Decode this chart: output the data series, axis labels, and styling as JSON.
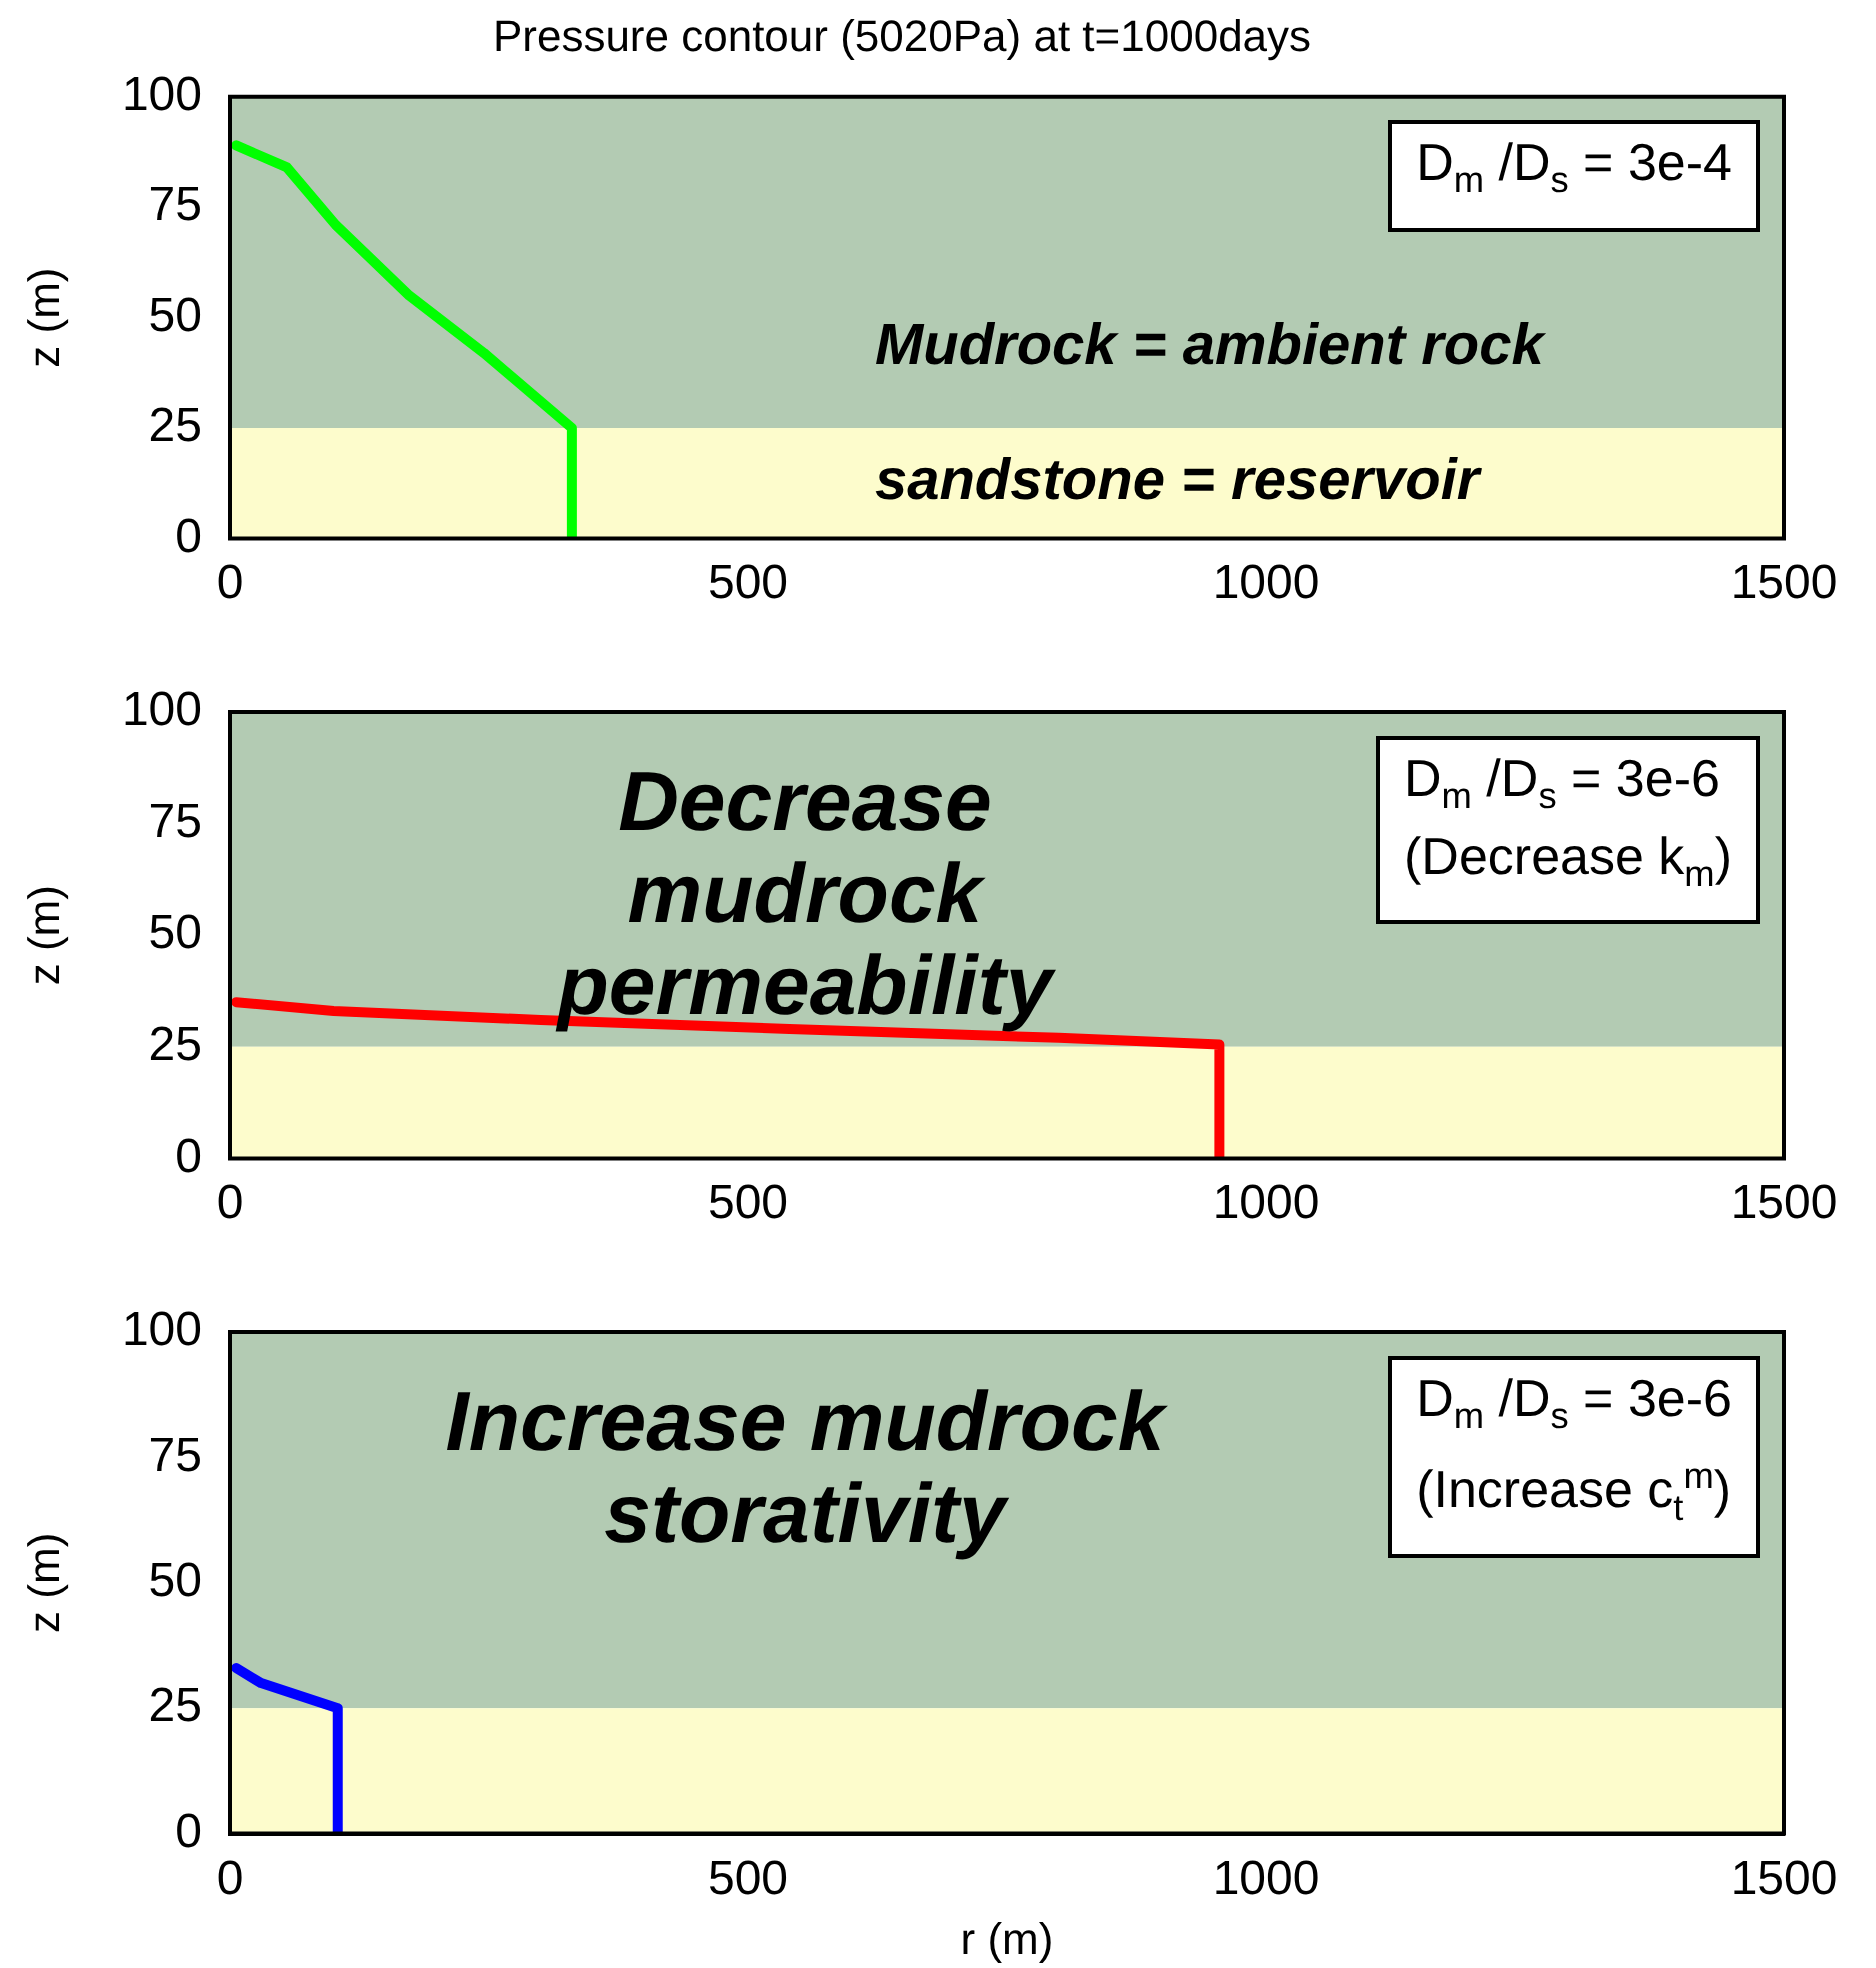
{
  "chart_data": [
    {
      "type": "line",
      "title": "Pressure contour (5020Pa) at t=1000days",
      "ylabel": "z (m)",
      "x": [
        6,
        55,
        102,
        173,
        245,
        330,
        330
      ],
      "xlim": [
        0,
        1500
      ],
      "xticks": [
        0,
        500,
        1000,
        1500
      ],
      "ylim": [
        0,
        100
      ],
      "yticks": [
        0,
        25,
        50,
        75,
        100
      ],
      "grid": false,
      "legend": false,
      "marker": "none",
      "line_style": "solid",
      "series": [
        {
          "color": "#00ff00",
          "values": [
            89,
            84,
            71,
            55,
            42,
            25,
            0
          ]
        }
      ],
      "bands": [
        {
          "axis": "y",
          "from": 25,
          "to": 100,
          "label": "Mudrock = ambient rock",
          "color": "#b3cbb3"
        },
        {
          "axis": "y",
          "from": 0,
          "to": 25,
          "label": "sandstone = reservoir",
          "color": "#fdfccc"
        }
      ],
      "annotations": [
        "D$_{m}$ /D$_{s}$ = 3e-4"
      ]
    },
    {
      "type": "line",
      "ylabel": "z (m)",
      "x": [
        6,
        100,
        300,
        540,
        800,
        955,
        955
      ],
      "xlim": [
        0,
        1500
      ],
      "xticks": [
        0,
        500,
        1000,
        1500
      ],
      "ylim": [
        0,
        100
      ],
      "yticks": [
        0,
        25,
        50,
        75,
        100
      ],
      "grid": false,
      "legend": false,
      "marker": "none",
      "line_style": "solid",
      "series": [
        {
          "color": "#ff0000",
          "values": [
            35,
            33,
            31,
            29,
            27,
            25.5,
            0
          ]
        }
      ],
      "bands": [
        {
          "axis": "y",
          "from": 25,
          "to": 100,
          "color": "#b3cbb3"
        },
        {
          "axis": "y",
          "from": 0,
          "to": 25,
          "color": "#fdfccc"
        }
      ],
      "annotations": [
        "D$_{m}$ /D$_{s}$ = 3e-6\n(Decrease k$_{m}$)",
        "Decrease\nmudrock\npermeability"
      ]
    },
    {
      "type": "line",
      "ylabel": "z (m)",
      "xlabel": "r (m)",
      "x": [
        6,
        30,
        104,
        104
      ],
      "xlim": [
        0,
        1500
      ],
      "xticks": [
        0,
        500,
        1000,
        1500
      ],
      "ylim": [
        0,
        100
      ],
      "yticks": [
        0,
        25,
        50,
        75,
        100
      ],
      "grid": false,
      "legend": false,
      "marker": "none",
      "line_style": "solid",
      "series": [
        {
          "color": "#0000ff",
          "values": [
            33,
            30,
            25,
            0
          ]
        }
      ],
      "bands": [
        {
          "axis": "y",
          "from": 25,
          "to": 100,
          "color": "#b3cbb3"
        },
        {
          "axis": "y",
          "from": 0,
          "to": 25,
          "color": "#fdfccc"
        }
      ],
      "annotations": [
        "D$_{m}$ /D$_{s}$ = 3e-6\n(Increase c$_{t}$$^{m}$)",
        "Increase mudrock\nstorativity"
      ]
    }
  ]
}
